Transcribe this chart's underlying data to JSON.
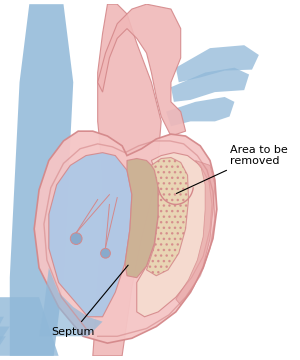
{
  "bg_color": "#ffffff",
  "heart_outer_color": "#f5c5c5",
  "heart_outer_stroke": "#d4888a",
  "lv_fill": "#aac8e8",
  "rv_fill": "#f0d0d0",
  "septum_shaded": "#e8d5b0",
  "vessel_blue": "#90b8d8",
  "vessel_pink": "#f0b8b8",
  "text_color": "#000000",
  "annotation_fontsize": 8,
  "label_septum": "Septum",
  "label_area": "Area to be\nremoved"
}
